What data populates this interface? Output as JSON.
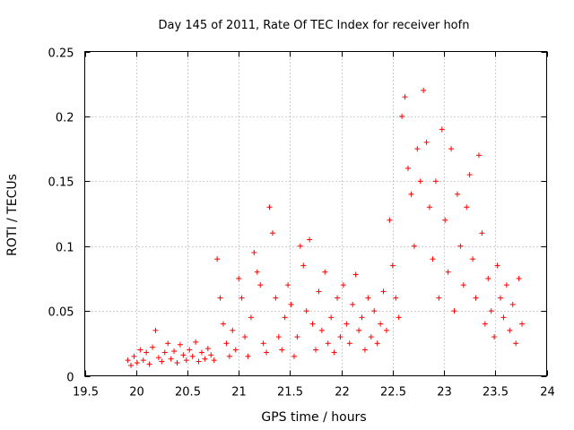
{
  "chart_data": {
    "type": "scatter",
    "title": "Day 145 of 2011, Rate Of TEC Index for receiver hofn",
    "xlabel": "GPS time / hours",
    "ylabel": "ROTI / TECUs",
    "xlim": [
      19.5,
      24
    ],
    "ylim": [
      0,
      0.25
    ],
    "xticks": [
      19.5,
      20,
      20.5,
      21,
      21.5,
      22,
      22.5,
      23,
      23.5,
      24
    ],
    "xtick_labels": [
      "19.5",
      "20",
      "20.5",
      "21",
      "21.5",
      "22",
      "22.5",
      "23",
      "23.5",
      "24"
    ],
    "yticks": [
      0,
      0.05,
      0.1,
      0.15,
      0.2,
      0.25
    ],
    "ytick_labels": [
      "0",
      "0.05",
      "0.1",
      "0.15",
      "0.2",
      "0.25"
    ],
    "grid": true,
    "marker": "+",
    "color": "#ff0000",
    "series": [
      {
        "name": "ROTI",
        "points": [
          [
            19.92,
            0.012
          ],
          [
            19.95,
            0.008
          ],
          [
            19.98,
            0.015
          ],
          [
            20.01,
            0.01
          ],
          [
            20.04,
            0.02
          ],
          [
            20.07,
            0.012
          ],
          [
            20.1,
            0.018
          ],
          [
            20.13,
            0.009
          ],
          [
            20.16,
            0.022
          ],
          [
            20.19,
            0.035
          ],
          [
            20.22,
            0.014
          ],
          [
            20.25,
            0.011
          ],
          [
            20.28,
            0.018
          ],
          [
            20.31,
            0.025
          ],
          [
            20.34,
            0.013
          ],
          [
            20.37,
            0.019
          ],
          [
            20.4,
            0.01
          ],
          [
            20.43,
            0.024
          ],
          [
            20.46,
            0.016
          ],
          [
            20.49,
            0.012
          ],
          [
            20.52,
            0.02
          ],
          [
            20.55,
            0.015
          ],
          [
            20.58,
            0.026
          ],
          [
            20.61,
            0.011
          ],
          [
            20.64,
            0.018
          ],
          [
            20.67,
            0.013
          ],
          [
            20.7,
            0.021
          ],
          [
            20.73,
            0.016
          ],
          [
            20.76,
            0.012
          ],
          [
            20.79,
            0.09
          ],
          [
            20.82,
            0.06
          ],
          [
            20.85,
            0.04
          ],
          [
            20.88,
            0.025
          ],
          [
            20.91,
            0.015
          ],
          [
            20.94,
            0.035
          ],
          [
            20.97,
            0.02
          ],
          [
            21.0,
            0.075
          ],
          [
            21.03,
            0.06
          ],
          [
            21.06,
            0.03
          ],
          [
            21.09,
            0.015
          ],
          [
            21.12,
            0.045
          ],
          [
            21.15,
            0.095
          ],
          [
            21.18,
            0.08
          ],
          [
            21.21,
            0.07
          ],
          [
            21.24,
            0.025
          ],
          [
            21.27,
            0.018
          ],
          [
            21.3,
            0.13
          ],
          [
            21.33,
            0.11
          ],
          [
            21.36,
            0.06
          ],
          [
            21.39,
            0.03
          ],
          [
            21.42,
            0.02
          ],
          [
            21.45,
            0.045
          ],
          [
            21.48,
            0.07
          ],
          [
            21.51,
            0.055
          ],
          [
            21.54,
            0.015
          ],
          [
            21.57,
            0.03
          ],
          [
            21.6,
            0.1
          ],
          [
            21.63,
            0.085
          ],
          [
            21.66,
            0.05
          ],
          [
            21.69,
            0.105
          ],
          [
            21.72,
            0.04
          ],
          [
            21.75,
            0.02
          ],
          [
            21.78,
            0.065
          ],
          [
            21.81,
            0.035
          ],
          [
            21.84,
            0.08
          ],
          [
            21.87,
            0.025
          ],
          [
            21.9,
            0.045
          ],
          [
            21.93,
            0.018
          ],
          [
            21.96,
            0.06
          ],
          [
            21.99,
            0.03
          ],
          [
            22.02,
            0.07
          ],
          [
            22.05,
            0.04
          ],
          [
            22.08,
            0.025
          ],
          [
            22.11,
            0.055
          ],
          [
            22.14,
            0.078
          ],
          [
            22.17,
            0.035
          ],
          [
            22.2,
            0.045
          ],
          [
            22.23,
            0.02
          ],
          [
            22.26,
            0.06
          ],
          [
            22.29,
            0.03
          ],
          [
            22.32,
            0.05
          ],
          [
            22.35,
            0.025
          ],
          [
            22.38,
            0.04
          ],
          [
            22.41,
            0.065
          ],
          [
            22.44,
            0.035
          ],
          [
            22.47,
            0.12
          ],
          [
            22.5,
            0.085
          ],
          [
            22.53,
            0.06
          ],
          [
            22.56,
            0.045
          ],
          [
            22.59,
            0.2
          ],
          [
            22.62,
            0.215
          ],
          [
            22.65,
            0.16
          ],
          [
            22.68,
            0.14
          ],
          [
            22.71,
            0.1
          ],
          [
            22.74,
            0.175
          ],
          [
            22.77,
            0.15
          ],
          [
            22.8,
            0.22
          ],
          [
            22.83,
            0.18
          ],
          [
            22.86,
            0.13
          ],
          [
            22.89,
            0.09
          ],
          [
            22.92,
            0.15
          ],
          [
            22.95,
            0.06
          ],
          [
            22.98,
            0.19
          ],
          [
            23.01,
            0.12
          ],
          [
            23.04,
            0.08
          ],
          [
            23.07,
            0.175
          ],
          [
            23.1,
            0.05
          ],
          [
            23.13,
            0.14
          ],
          [
            23.16,
            0.1
          ],
          [
            23.19,
            0.07
          ],
          [
            23.22,
            0.13
          ],
          [
            23.25,
            0.155
          ],
          [
            23.28,
            0.09
          ],
          [
            23.31,
            0.06
          ],
          [
            23.34,
            0.17
          ],
          [
            23.37,
            0.11
          ],
          [
            23.4,
            0.04
          ],
          [
            23.43,
            0.075
          ],
          [
            23.46,
            0.05
          ],
          [
            23.49,
            0.03
          ],
          [
            23.52,
            0.085
          ],
          [
            23.55,
            0.06
          ],
          [
            23.58,
            0.045
          ],
          [
            23.61,
            0.07
          ],
          [
            23.64,
            0.035
          ],
          [
            23.67,
            0.055
          ],
          [
            23.7,
            0.025
          ],
          [
            23.73,
            0.075
          ],
          [
            23.76,
            0.04
          ]
        ]
      }
    ]
  }
}
